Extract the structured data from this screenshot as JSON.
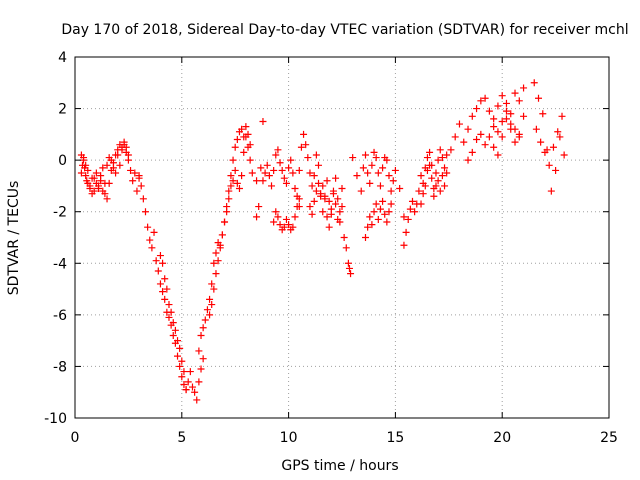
{
  "chart_data": {
    "type": "scatter",
    "title": "Day 170 of 2018, Sidereal Day-to-day VTEC variation (SDTVAR) for receiver mchl",
    "xlabel": "GPS time / hours",
    "ylabel": "SDTVAR / TECUs",
    "xlim": [
      0,
      25
    ],
    "ylim": [
      -10,
      4
    ],
    "xticks": [
      0,
      5,
      10,
      15,
      20,
      25
    ],
    "yticks": [
      -10,
      -8,
      -6,
      -4,
      -2,
      0,
      2,
      4
    ],
    "grid": true,
    "marker": "+",
    "series": [
      {
        "name": "SDTVAR",
        "color": "#ff0000",
        "segments": [
          {
            "x": [
              0.3,
              0.35,
              0.4,
              0.45,
              0.5,
              0.55,
              0.6,
              0.7,
              0.8,
              0.9,
              1.0,
              1.1,
              1.2,
              1.3,
              1.4,
              1.5,
              1.6,
              1.7,
              1.8,
              1.9,
              2.0,
              2.1,
              2.2,
              2.3,
              2.4,
              2.5,
              2.6,
              2.7,
              2.8,
              2.9,
              3.0
            ],
            "y": [
              -0.5,
              -0.2,
              0.1,
              -0.3,
              -0.6,
              -0.8,
              -0.4,
              -1.0,
              -0.7,
              -1.2,
              -0.9,
              -1.1,
              -0.6,
              -0.3,
              -1.3,
              -1.5,
              -0.9,
              -0.4,
              -0.1,
              0.2,
              0.4,
              -0.2,
              0.5,
              0.6,
              0.3,
              0.0,
              -0.4,
              -0.8,
              -0.5,
              -1.2,
              -0.6
            ]
          },
          {
            "x": [
              0.3,
              0.4,
              0.5,
              0.6,
              0.7,
              0.8,
              0.9,
              1.0,
              1.1,
              1.2,
              1.3,
              1.4,
              1.5,
              1.6,
              1.7,
              1.8,
              1.9,
              2.0,
              2.1,
              2.2,
              2.3,
              2.4,
              2.5
            ],
            "y": [
              0.2,
              0.0,
              -0.2,
              -0.9,
              -1.1,
              -1.3,
              -0.7,
              -0.5,
              -1.0,
              -0.8,
              -1.2,
              -0.9,
              -0.2,
              0.1,
              0.0,
              -0.3,
              -0.5,
              0.2,
              0.6,
              0.4,
              0.7,
              0.5,
              0.2
            ]
          },
          {
            "x": [
              3.0,
              3.1,
              3.2,
              3.3,
              3.4,
              3.5,
              3.6,
              3.7,
              3.8,
              3.9,
              4.0,
              4.1,
              4.2,
              4.3,
              4.4,
              4.5,
              4.6,
              4.7,
              4.8,
              4.9,
              5.0,
              5.1,
              5.2,
              5.3,
              5.4,
              5.5,
              5.6,
              5.7,
              5.8,
              5.9,
              6.0
            ],
            "y": [
              -0.7,
              -1.0,
              -1.5,
              -2.0,
              -2.6,
              -3.1,
              -3.4,
              -2.8,
              -3.9,
              -4.3,
              -4.8,
              -5.1,
              -5.4,
              -5.9,
              -6.1,
              -6.4,
              -6.8,
              -7.1,
              -7.6,
              -8.0,
              -8.4,
              -8.7,
              -8.9,
              -8.6,
              -8.2,
              -8.8,
              -9.0,
              -9.3,
              -8.6,
              -8.1,
              -7.7
            ]
          },
          {
            "x": [
              4.0,
              4.1,
              4.2,
              4.3,
              4.4,
              4.5,
              4.6,
              4.7,
              4.8,
              4.9,
              5.0,
              5.1,
              5.2
            ],
            "y": [
              -3.7,
              -4.0,
              -4.6,
              -5.0,
              -5.6,
              -5.9,
              -6.3,
              -6.6,
              -7.0,
              -7.3,
              -7.8,
              -8.2,
              -8.9
            ]
          },
          {
            "x": [
              5.8,
              5.9,
              6.0,
              6.1,
              6.2,
              6.3,
              6.4,
              6.5,
              6.6,
              6.7,
              6.8,
              6.9,
              7.0,
              7.1,
              7.2,
              7.3,
              7.4,
              7.5,
              7.6,
              7.7,
              7.8,
              7.9,
              8.0,
              8.1,
              8.2
            ],
            "y": [
              -7.4,
              -6.8,
              -6.5,
              -6.2,
              -5.8,
              -5.4,
              -4.8,
              -4.0,
              -3.6,
              -3.2,
              -3.4,
              -2.9,
              -2.4,
              -1.8,
              -1.2,
              -0.6,
              0.0,
              0.5,
              0.8,
              1.1,
              1.2,
              0.9,
              1.3,
              1.0,
              0.6
            ]
          },
          {
            "x": [
              6.3,
              6.4,
              6.5,
              6.6,
              6.7,
              6.8,
              6.9,
              7.0,
              7.1,
              7.2,
              7.3
            ],
            "y": [
              -6.0,
              -5.6,
              -5.0,
              -4.4,
              -3.9,
              -3.3,
              -2.9,
              -2.4,
              -2.0,
              -1.5,
              -1.0
            ]
          },
          {
            "x": [
              7.4,
              7.5,
              7.6,
              7.7,
              7.8,
              7.9,
              8.0,
              8.1,
              8.2,
              8.3,
              8.5,
              8.8
            ],
            "y": [
              -0.8,
              -0.4,
              -0.9,
              -1.1,
              -0.6,
              0.3,
              0.9,
              0.5,
              0.0,
              -0.5,
              -0.8,
              1.5
            ]
          },
          {
            "x": [
              8.5,
              8.6,
              8.7,
              8.8,
              8.9,
              9.0,
              9.1,
              9.2,
              9.3,
              9.4,
              9.5,
              9.6,
              9.7,
              9.8,
              9.9,
              10.0,
              10.1,
              10.2,
              10.3,
              10.4,
              10.5
            ],
            "y": [
              -2.2,
              -1.8,
              -0.3,
              -0.8,
              -0.5,
              -0.2,
              -0.6,
              -1.0,
              -0.4,
              0.2,
              0.4,
              -0.1,
              -0.4,
              -0.7,
              -0.9,
              -0.3,
              0.0,
              -0.5,
              -1.1,
              -1.4,
              -1.8
            ]
          },
          {
            "x": [
              9.3,
              9.4,
              9.5,
              9.6,
              9.7,
              9.8,
              9.9,
              10.0,
              10.1,
              10.2,
              10.3,
              10.4,
              10.5
            ],
            "y": [
              -2.4,
              -2.0,
              -2.2,
              -2.5,
              -2.7,
              -2.6,
              -2.3,
              -2.5,
              -2.7,
              -2.6,
              -2.2,
              -1.8,
              -1.5
            ]
          },
          {
            "x": [
              10.5,
              10.6,
              10.7,
              10.8,
              10.9,
              11.0,
              11.1,
              11.2,
              11.3,
              11.4,
              11.5,
              11.6,
              11.7,
              11.8,
              11.9,
              12.0,
              12.1,
              12.2,
              12.3,
              12.4,
              12.5,
              12.6,
              12.7
            ],
            "y": [
              -0.4,
              0.5,
              1.0,
              0.6,
              0.1,
              -0.5,
              -1.0,
              -0.6,
              0.2,
              -0.2,
              -1.3,
              -2.0,
              -1.4,
              -0.8,
              -1.6,
              -2.1,
              -1.2,
              -0.7,
              -1.5,
              -2.4,
              -1.8,
              -3.0,
              -3.4
            ]
          },
          {
            "x": [
              11.0,
              11.1,
              11.2,
              11.3,
              11.4,
              11.5,
              11.6,
              11.7,
              11.8,
              11.9,
              12.0,
              12.1,
              12.2,
              12.3,
              12.4,
              12.5
            ],
            "y": [
              -1.8,
              -2.1,
              -1.6,
              -1.2,
              -0.9,
              -1.4,
              -1.0,
              -1.5,
              -2.2,
              -2.6,
              -1.9,
              -1.3,
              -1.7,
              -2.3,
              -2.0,
              -1.1
            ]
          },
          {
            "x": [
              12.8,
              12.85,
              12.9
            ],
            "y": [
              -4.0,
              -4.2,
              -4.4
            ]
          },
          {
            "x": [
              13.0,
              13.2,
              13.4,
              13.5,
              13.6,
              13.7,
              13.8,
              13.9,
              14.0,
              14.1,
              14.2,
              14.3,
              14.4,
              14.5,
              14.6,
              14.7,
              14.8,
              14.9,
              15.0,
              15.2,
              15.4
            ],
            "y": [
              0.1,
              -0.6,
              -1.2,
              -0.3,
              0.2,
              -0.5,
              -0.9,
              -0.2,
              0.3,
              0.1,
              -0.5,
              -1.0,
              -0.3,
              0.1,
              0.0,
              -0.6,
              -1.2,
              -0.8,
              -0.4,
              -1.1,
              -2.2
            ]
          },
          {
            "x": [
              13.6,
              13.7,
              13.8,
              13.9,
              14.0,
              14.1,
              14.2,
              14.3,
              14.4,
              14.5,
              14.6,
              14.7,
              14.8
            ],
            "y": [
              -3.0,
              -2.6,
              -2.2,
              -2.5,
              -2.0,
              -1.7,
              -2.3,
              -1.9,
              -1.6,
              -2.1,
              -2.4,
              -2.0,
              -1.7
            ]
          },
          {
            "x": [
              15.4,
              15.5,
              15.6,
              15.7,
              15.8,
              15.9,
              16.0,
              16.1,
              16.2,
              16.3,
              16.4,
              16.5,
              16.6,
              16.7,
              16.8,
              16.9,
              17.0,
              17.1,
              17.2,
              17.3,
              17.4
            ],
            "y": [
              -3.3,
              -2.8,
              -2.3,
              -1.9,
              -1.6,
              -2.0,
              -1.7,
              -1.2,
              -0.6,
              -0.9,
              -0.3,
              0.1,
              -0.2,
              -0.7,
              -1.1,
              -0.5,
              0.0,
              0.4,
              0.1,
              -0.3,
              0.2
            ]
          },
          {
            "x": [
              16.2,
              16.3,
              16.4,
              16.5,
              16.6,
              16.7,
              16.8,
              16.9,
              17.0,
              17.1,
              17.2,
              17.3
            ],
            "y": [
              -1.7,
              -1.3,
              -1.0,
              -0.4,
              0.3,
              -0.2,
              -1.4,
              -1.0,
              -0.8,
              -1.2,
              -0.6,
              -1.0
            ]
          },
          {
            "x": [
              17.4,
              17.6,
              17.8,
              18.0,
              18.2,
              18.4,
              18.6,
              18.8,
              19.0,
              19.2,
              19.4,
              19.6,
              19.8,
              20.0,
              20.2,
              20.4,
              20.6,
              20.8,
              21.0
            ],
            "y": [
              -0.5,
              0.4,
              0.9,
              1.4,
              0.7,
              1.2,
              1.7,
              2.0,
              2.3,
              2.4,
              1.9,
              1.6,
              2.1,
              2.5,
              2.2,
              1.8,
              2.6,
              2.3,
              1.7
            ]
          },
          {
            "x": [
              18.4,
              18.6,
              18.8,
              19.0,
              19.2,
              19.4,
              19.6,
              19.8,
              20.0,
              20.2,
              20.4,
              20.6,
              20.8
            ],
            "y": [
              0.0,
              0.3,
              0.8,
              1.0,
              0.6,
              0.9,
              1.3,
              1.1,
              1.5,
              1.9,
              1.4,
              1.2,
              0.9
            ]
          },
          {
            "x": [
              19.6,
              19.8,
              20.0,
              20.2,
              20.4,
              20.6,
              20.8,
              21.0
            ],
            "y": [
              0.5,
              0.2,
              0.9,
              1.6,
              1.2,
              0.7,
              1.0,
              2.8
            ]
          },
          {
            "x": [
              21.5,
              21.7,
              21.9,
              22.1,
              22.3,
              22.5,
              22.7,
              22.9
            ],
            "y": [
              3.0,
              2.4,
              1.8,
              0.4,
              -1.2,
              -0.4,
              0.9,
              0.2
            ]
          },
          {
            "x": [
              21.6,
              21.8,
              22.0,
              22.2,
              22.4,
              22.6,
              22.8
            ],
            "y": [
              1.2,
              0.7,
              0.3,
              -0.2,
              0.5,
              1.1,
              1.7
            ]
          }
        ]
      }
    ]
  }
}
